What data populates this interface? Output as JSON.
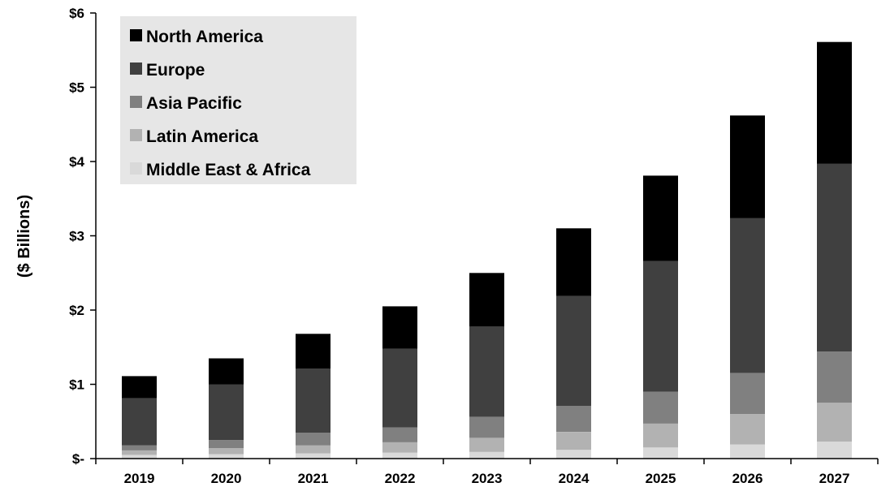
{
  "chart_data": {
    "type": "bar",
    "stacked": true,
    "title": "",
    "xlabel": "",
    "ylabel": "($ Billions)",
    "ylim": [
      0,
      6
    ],
    "y_ticks": [
      {
        "value": 0,
        "label": "$-"
      },
      {
        "value": 1,
        "label": "$1"
      },
      {
        "value": 2,
        "label": "$2"
      },
      {
        "value": 3,
        "label": "$3"
      },
      {
        "value": 4,
        "label": "$4"
      },
      {
        "value": 5,
        "label": "$5"
      },
      {
        "value": 6,
        "label": "$6"
      }
    ],
    "grid": false,
    "legend": "top-left",
    "categories": [
      "2019",
      "2020",
      "2021",
      "2022",
      "2023",
      "2024",
      "2025",
      "2026",
      "2027"
    ],
    "series": [
      {
        "name": "Middle East & Africa",
        "color": "#d9d9d9",
        "values": [
          0.05,
          0.06,
          0.07,
          0.08,
          0.09,
          0.12,
          0.15,
          0.19,
          0.23
        ]
      },
      {
        "name": "Latin America",
        "color": "#b2b2b2",
        "values": [
          0.06,
          0.08,
          0.11,
          0.14,
          0.19,
          0.24,
          0.32,
          0.41,
          0.52
        ]
      },
      {
        "name": "Asia Pacific",
        "color": "#808080",
        "values": [
          0.07,
          0.11,
          0.17,
          0.2,
          0.28,
          0.35,
          0.43,
          0.55,
          0.69
        ]
      },
      {
        "name": "Europe",
        "color": "#404040",
        "values": [
          0.63,
          0.75,
          0.86,
          1.06,
          1.22,
          1.48,
          1.76,
          2.09,
          2.53
        ]
      },
      {
        "name": "North America",
        "color": "#000000",
        "values": [
          0.3,
          0.35,
          0.47,
          0.57,
          0.72,
          0.91,
          1.15,
          1.38,
          1.64
        ]
      }
    ],
    "legend_order": [
      "North America",
      "Europe",
      "Asia Pacific",
      "Latin America",
      "Middle East & Africa"
    ]
  }
}
